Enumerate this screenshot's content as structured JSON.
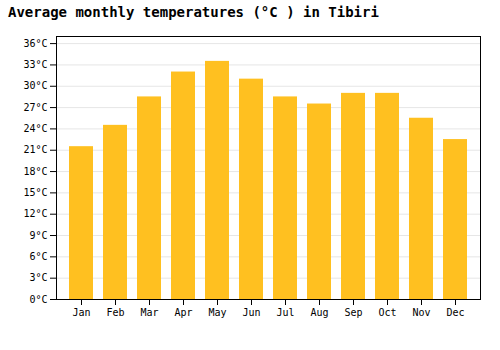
{
  "chart_data": {
    "type": "bar",
    "title": "Average monthly temperatures (°C ) in Tibiri",
    "categories": [
      "Jan",
      "Feb",
      "Mar",
      "Apr",
      "May",
      "Jun",
      "Jul",
      "Aug",
      "Sep",
      "Oct",
      "Nov",
      "Dec"
    ],
    "values": [
      21.5,
      24.5,
      28.5,
      32.0,
      33.5,
      31.0,
      28.5,
      27.5,
      29.0,
      29.0,
      25.5,
      22.5
    ],
    "color": "#FFC020",
    "ylim": [
      0,
      37
    ],
    "yticks": [
      {
        "value": 0,
        "label": "0°C"
      },
      {
        "value": 3,
        "label": "3°C"
      },
      {
        "value": 6,
        "label": "6°C"
      },
      {
        "value": 9,
        "label": "9°C"
      },
      {
        "value": 12,
        "label": "12°C"
      },
      {
        "value": 15,
        "label": "15°C"
      },
      {
        "value": 18,
        "label": "18°C"
      },
      {
        "value": 21,
        "label": "21°C"
      },
      {
        "value": 24,
        "label": "24°C"
      },
      {
        "value": 27,
        "label": "27°C"
      },
      {
        "value": 30,
        "label": "30°C"
      },
      {
        "value": 33,
        "label": "33°C"
      },
      {
        "value": 36,
        "label": "36°C"
      }
    ],
    "grid": true
  }
}
